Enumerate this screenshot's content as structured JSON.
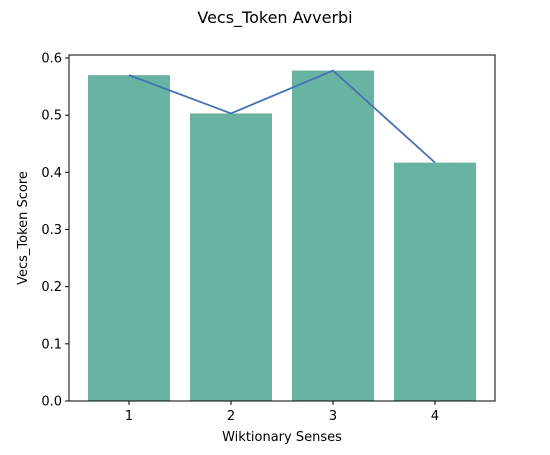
{
  "chart_data": {
    "type": "bar",
    "title": "Vecs_Token Avverbi",
    "xlabel": "Wiktionary Senses",
    "ylabel": "Vecs_Token Score",
    "categories": [
      "1",
      "2",
      "3",
      "4"
    ],
    "values": [
      0.57,
      0.503,
      0.578,
      0.417
    ],
    "line_values": [
      0.57,
      0.503,
      0.578,
      0.417
    ],
    "yticks": [
      "0.0",
      "0.1",
      "0.2",
      "0.3",
      "0.4",
      "0.5",
      "0.6"
    ],
    "ylim": [
      0,
      0.6
    ],
    "grid": false,
    "bar_color": "#69b3a2",
    "line_color": "#4472b4"
  }
}
